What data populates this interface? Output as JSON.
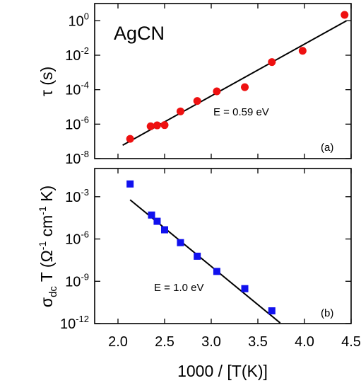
{
  "colors": {
    "top_marker": "#ee1111",
    "bottom_marker": "#1111ee",
    "fit_line": "#000000"
  },
  "x_axis": {
    "label": "1000 / [T(K)]",
    "range": [
      1.75,
      4.5
    ],
    "ticks": [
      "2.0",
      "2.5",
      "3.0",
      "3.5",
      "4.0",
      "4.5"
    ],
    "tick_values": [
      2.0,
      2.5,
      3.0,
      3.5,
      4.0,
      4.5
    ]
  },
  "chart_data": [
    {
      "type": "scatter",
      "panel_label": "(a)",
      "in_plot_title": "AgCN",
      "ylabel": "τ (s)",
      "yscale": "log",
      "ylim": [
        1e-08,
        10
      ],
      "y_ticks": [
        {
          "base": "10",
          "exp": "0",
          "value": 1
        },
        {
          "base": "10",
          "exp": "-2",
          "value": 0.01
        },
        {
          "base": "10",
          "exp": "-4",
          "value": 0.0001
        },
        {
          "base": "10",
          "exp": "-6",
          "value": 1e-06
        },
        {
          "base": "10",
          "exp": "-8",
          "value": 1e-08
        }
      ],
      "marker": "circle",
      "points": [
        {
          "x": 2.13,
          "y": 1.4e-07
        },
        {
          "x": 2.35,
          "y": 7.5e-07
        },
        {
          "x": 2.42,
          "y": 8.5e-07
        },
        {
          "x": 2.5,
          "y": 8.8e-07
        },
        {
          "x": 2.67,
          "y": 5.5e-06
        },
        {
          "x": 2.85,
          "y": 2.2e-05
        },
        {
          "x": 3.06,
          "y": 8e-05
        },
        {
          "x": 3.36,
          "y": 0.00014
        },
        {
          "x": 3.65,
          "y": 0.004
        },
        {
          "x": 3.98,
          "y": 0.018
        },
        {
          "x": 4.43,
          "y": 2.2
        }
      ],
      "fit": {
        "x": [
          2.05,
          4.45
        ],
        "y": [
          6e-08,
          1.0
        ]
      },
      "annotation": "E = 0.59 eV"
    },
    {
      "type": "scatter",
      "panel_label": "(b)",
      "ylabel_main": "σ",
      "ylabel_sub": "dc",
      "ylabel_rest_parts": [
        " T (Ω",
        "-1",
        " cm",
        "-1",
        " K)"
      ],
      "yscale": "log",
      "ylim": [
        1e-12,
        0.1
      ],
      "y_ticks": [
        {
          "base": "10",
          "exp": "-3",
          "value": 0.001
        },
        {
          "base": "10",
          "exp": "-6",
          "value": 1e-06
        },
        {
          "base": "10",
          "exp": "-9",
          "value": 1e-09
        },
        {
          "base": "10",
          "exp": "-12",
          "value": 1e-12
        }
      ],
      "marker": "square",
      "points": [
        {
          "x": 2.13,
          "y": 0.008
        },
        {
          "x": 2.36,
          "y": 5e-05
        },
        {
          "x": 2.42,
          "y": 1.8e-05
        },
        {
          "x": 2.5,
          "y": 4.5e-06
        },
        {
          "x": 2.67,
          "y": 5.5e-07
        },
        {
          "x": 2.85,
          "y": 6e-08
        },
        {
          "x": 3.06,
          "y": 5e-09
        },
        {
          "x": 3.36,
          "y": 3e-10
        },
        {
          "x": 3.65,
          "y": 8e-12
        }
      ],
      "fit": {
        "x": [
          2.13,
          3.74
        ],
        "y": [
          0.0006,
          1.1e-12
        ]
      },
      "annotation": "E = 1.0 eV"
    }
  ]
}
